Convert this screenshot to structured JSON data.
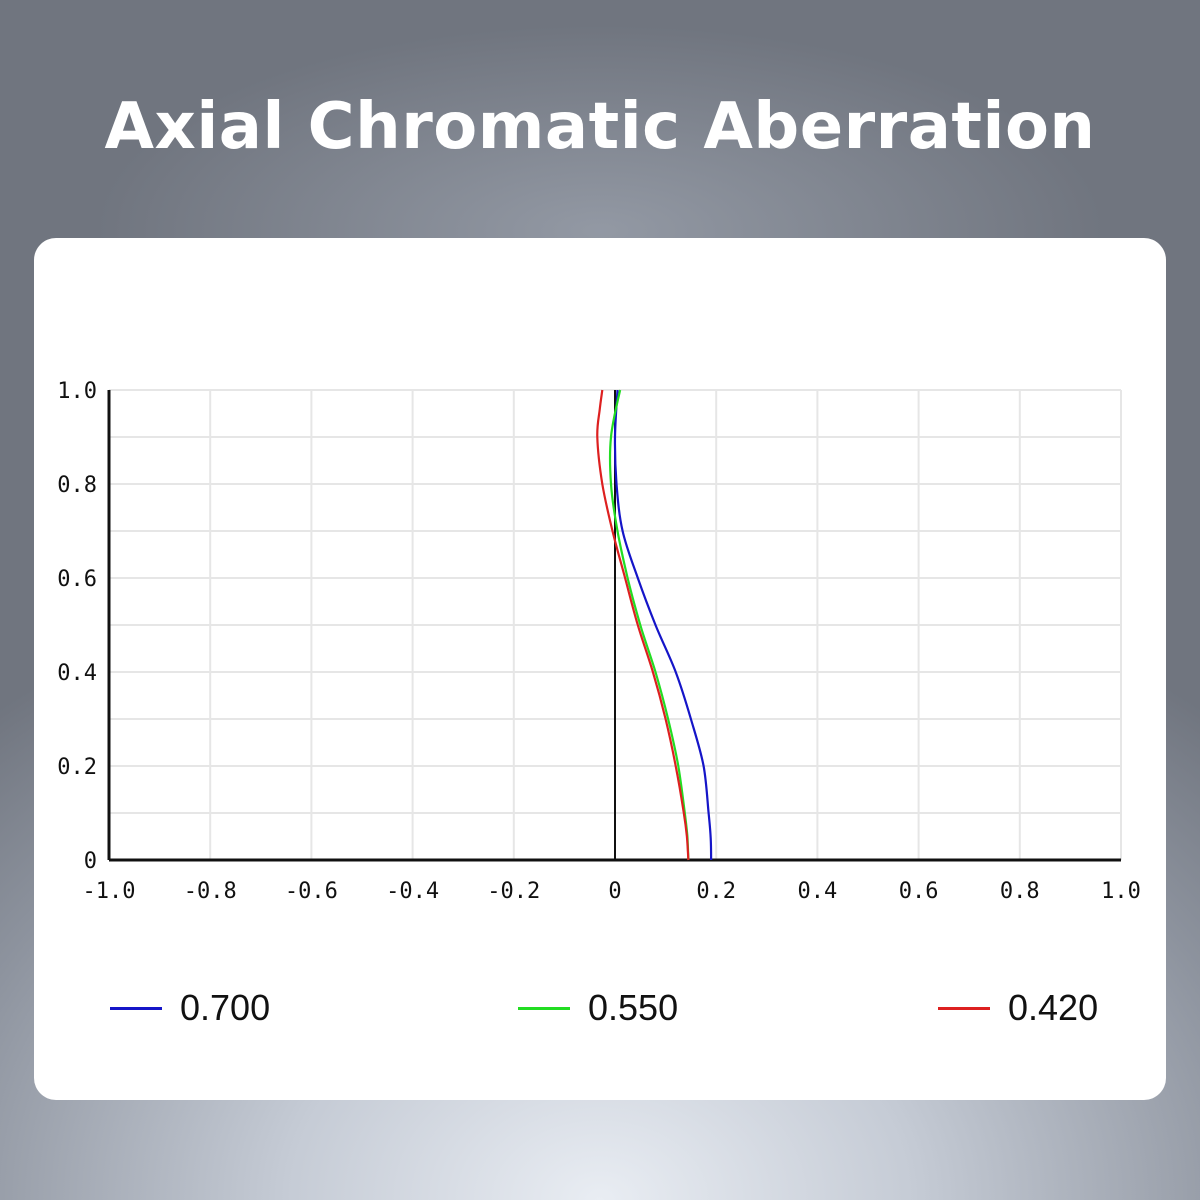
{
  "title": "Axial Chromatic Aberration",
  "colors": {
    "card_background": "#ffffff",
    "grid": "#e6e6e6",
    "axis": "#111111"
  },
  "chart_data": {
    "type": "line",
    "xlim": [
      -1.0,
      1.0
    ],
    "ylim": [
      0,
      1.0
    ],
    "x_ticks": [
      "-1.0",
      "-0.8",
      "-0.6",
      "-0.4",
      "-0.2",
      "0",
      "0.2",
      "0.4",
      "0.6",
      "0.8",
      "1.0"
    ],
    "y_ticks": [
      "1.0",
      "0.8",
      "0.6",
      "0.4",
      "0.2",
      "0"
    ],
    "grid": true,
    "legend_position": "bottom",
    "series": [
      {
        "name": "0.700",
        "color": "#1515c8",
        "points": [
          [
            0.19,
            0.0
          ],
          [
            0.189,
            0.05
          ],
          [
            0.185,
            0.1
          ],
          [
            0.175,
            0.2
          ],
          [
            0.15,
            0.3
          ],
          [
            0.12,
            0.4
          ],
          [
            0.08,
            0.5
          ],
          [
            0.045,
            0.6
          ],
          [
            0.015,
            0.7
          ],
          [
            0.003,
            0.8
          ],
          [
            0.0,
            0.9
          ],
          [
            0.005,
            1.0
          ]
        ]
      },
      {
        "name": "0.550",
        "color": "#22dd22",
        "points": [
          [
            0.145,
            0.0
          ],
          [
            0.143,
            0.05
          ],
          [
            0.138,
            0.1
          ],
          [
            0.125,
            0.2
          ],
          [
            0.105,
            0.3
          ],
          [
            0.08,
            0.4
          ],
          [
            0.05,
            0.5
          ],
          [
            0.025,
            0.6
          ],
          [
            0.005,
            0.7
          ],
          [
            -0.008,
            0.8
          ],
          [
            -0.008,
            0.9
          ],
          [
            0.01,
            1.0
          ]
        ]
      },
      {
        "name": "0.420",
        "color": "#dd2020",
        "points": [
          [
            0.145,
            0.0
          ],
          [
            0.142,
            0.05
          ],
          [
            0.136,
            0.1
          ],
          [
            0.12,
            0.2
          ],
          [
            0.1,
            0.3
          ],
          [
            0.075,
            0.4
          ],
          [
            0.045,
            0.5
          ],
          [
            0.02,
            0.6
          ],
          [
            -0.005,
            0.7
          ],
          [
            -0.025,
            0.8
          ],
          [
            -0.035,
            0.9
          ],
          [
            -0.03,
            0.96
          ],
          [
            -0.025,
            1.0
          ]
        ]
      }
    ]
  }
}
